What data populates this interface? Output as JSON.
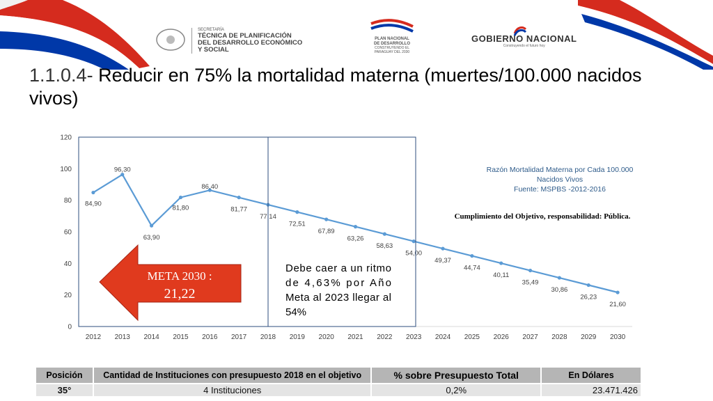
{
  "header": {
    "logo1_lines": [
      "SECRETARÍA",
      "TÉCNICA DE PLANIFICACIÓN",
      "DEL DESARROLLO ECONÓMICO",
      "Y SOCIAL"
    ],
    "logo2_lines": [
      "PLAN NACIONAL",
      "DE DESARROLLO",
      "CONSTRUYENDO EL",
      "PARAGUAY DEL 2030"
    ],
    "logo3_text": "GOBIERNO NACIONAL",
    "logo3_sub": "Construyendo el futuro hoy"
  },
  "title": {
    "number": "1.1.0.4-",
    "text": " Reducir en 75% la mortalidad materna (muertes/100.000 nacidos vivos)"
  },
  "chart_data": {
    "type": "line",
    "x": [
      "2012",
      "2013",
      "2014",
      "2015",
      "2016",
      "2017",
      "2018",
      "2019",
      "2020",
      "2021",
      "2022",
      "2023",
      "2024",
      "2025",
      "2026",
      "2027",
      "2028",
      "2029",
      "2030"
    ],
    "series": [
      {
        "values": [
          84.9,
          96.3,
          63.9,
          81.8,
          86.4,
          81.77,
          77.14,
          72.51,
          67.89,
          63.26,
          58.63,
          54.0,
          49.37,
          44.74,
          40.11,
          35.49,
          30.86,
          26.23,
          21.6
        ]
      }
    ],
    "data_labels": [
      "84,90",
      "96,30",
      "63,90",
      "81,80",
      "86,40",
      "81,77",
      "77,14",
      "72,51",
      "67,89",
      "63,26",
      "58,63",
      "54,00",
      "49,37",
      "44,74",
      "40,11",
      "35,49",
      "30,86",
      "26,23",
      "21,60"
    ],
    "yticks": [
      "0",
      "20",
      "40",
      "60",
      "80",
      "100",
      "120"
    ],
    "ylim": [
      0,
      120
    ],
    "color": "#5b9bd5",
    "source_note": [
      "Razón Mortalidad Materna por Cada 100.000",
      "Nacidos Vivos",
      "Fuente: MSPBS -2012-2016"
    ],
    "source_color": "#2e5b8a",
    "compliance_note": "Cumplimiento del Objetivo, responsabilidad: Pública.",
    "meta_arrow": {
      "line1": "META 2030 :",
      "line2": "21,22",
      "color": "#e03a1e"
    },
    "callout_lines": [
      "Debe caer a un ritmo",
      "de 4,63% por Año",
      "Meta al 2023 llegar al",
      "54%"
    ]
  },
  "table": {
    "headers": [
      "Posición",
      "Cantidad de Instituciones con presupuesto 2018 en el objetivo",
      "% sobre Presupuesto Total",
      "En Dólares"
    ],
    "row": [
      "35°",
      "4 Instituciones",
      "0,2%",
      "23.471.426"
    ]
  }
}
